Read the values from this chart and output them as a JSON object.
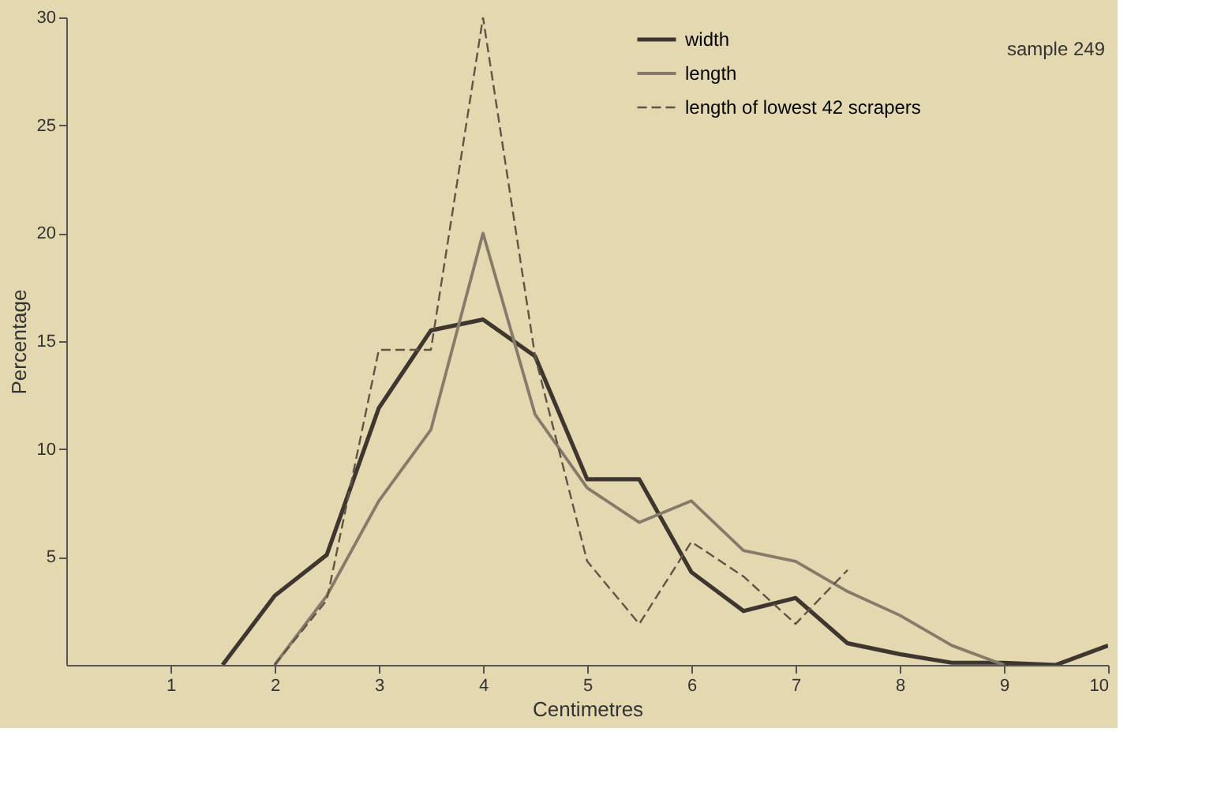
{
  "chart_data": {
    "type": "line",
    "xlabel": "Centimetres",
    "ylabel": "Percentage",
    "xlim": [
      0,
      10
    ],
    "xticks": [
      1,
      2,
      3,
      4,
      5,
      6,
      7,
      8,
      9,
      10
    ],
    "ylim": [
      0,
      30
    ],
    "yticks": [
      5,
      10,
      15,
      20,
      25,
      30
    ],
    "grid": false,
    "legend": "top right",
    "marker": "none",
    "annotations": [
      "sample 249"
    ],
    "series": [
      {
        "name": "width",
        "color": "#3f372f",
        "line_style": "solid",
        "x": [
          1.5,
          2,
          2.5,
          3,
          3.5,
          4,
          4.5,
          5,
          5.5,
          6,
          6.5,
          7,
          7.5,
          8,
          8.5,
          9,
          9.5,
          10
        ],
        "values": [
          0,
          3.2,
          5.1,
          11.9,
          15.5,
          16,
          14.3,
          8.6,
          8.6,
          4.3,
          2.5,
          3.1,
          1,
          0.5,
          0.1,
          0.1,
          0,
          0.9
        ]
      },
      {
        "name": "length",
        "color": "#857b6a",
        "line_style": "solid",
        "x": [
          2,
          2.5,
          3,
          3.5,
          4,
          4.5,
          5,
          5.5,
          6,
          6.5,
          7,
          7.5,
          8,
          8.5,
          9
        ],
        "values": [
          0,
          3.2,
          7.6,
          10.9,
          20,
          11.6,
          8.2,
          6.6,
          7.6,
          5.3,
          4.8,
          3.4,
          2.3,
          0.9,
          0
        ]
      },
      {
        "name": "length of lowest 42 scrapers",
        "color": "#5e5546",
        "line_style": "dashed",
        "x": [
          2,
          2.5,
          3,
          3.5,
          4,
          4.5,
          5,
          5.5,
          6,
          6.5,
          7,
          7.5
        ],
        "values": [
          0,
          3,
          14.6,
          14.6,
          30,
          14.3,
          4.8,
          1.9,
          5.7,
          4.1,
          1.9,
          4.4
        ]
      }
    ]
  }
}
